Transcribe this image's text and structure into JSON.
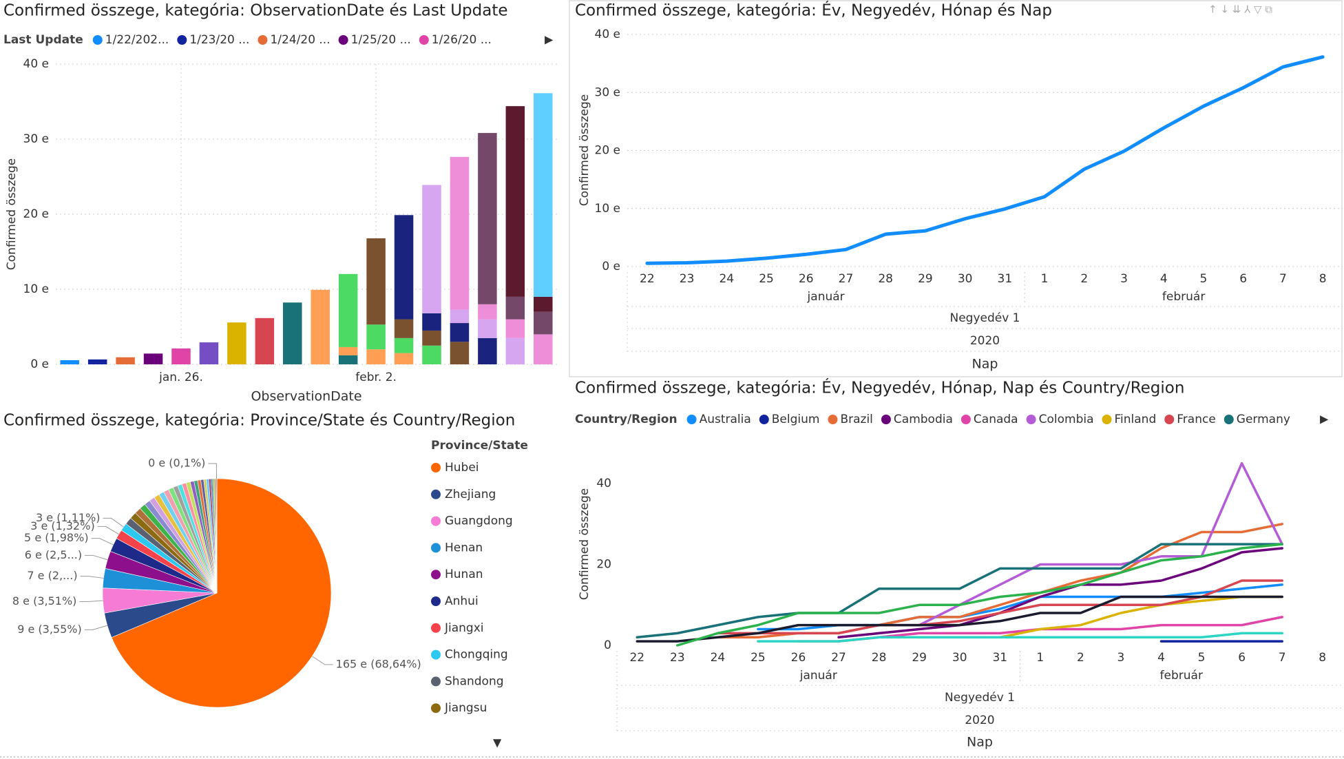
{
  "chart_data": [
    {
      "type": "bar",
      "title": "Confirmed összege, kategória: ObservationDate és Last Update",
      "legend_title": "Last Update",
      "xlabel": "ObservationDate",
      "ylabel": "Confirmed összege",
      "categories": [
        null,
        null,
        null,
        null,
        "jan. 26.",
        null,
        null,
        null,
        null,
        null,
        null,
        "febr. 2.",
        null,
        null,
        null,
        null,
        null,
        null
      ],
      "ylim": [
        0,
        40000
      ],
      "grid": true,
      "yticks": [
        {
          "value": 0,
          "label": "0 e"
        },
        {
          "value": 10000,
          "label": "10 e"
        },
        {
          "value": 20000,
          "label": "20 e"
        },
        {
          "value": 30000,
          "label": "30 e"
        },
        {
          "value": 40000,
          "label": "40 e"
        }
      ],
      "series": [
        {
          "name": "1/22/202...",
          "color": "#118DFF",
          "values": [
            555,
            null,
            null,
            null,
            null,
            null,
            null,
            null,
            null,
            null,
            null,
            null,
            null,
            null,
            null,
            null,
            null,
            null
          ]
        },
        {
          "name": "1/23/20 ...",
          "color": "#12239E",
          "values": [
            null,
            653,
            null,
            null,
            null,
            null,
            null,
            null,
            null,
            null,
            null,
            null,
            null,
            null,
            null,
            null,
            null,
            null
          ]
        },
        {
          "name": "1/24/20 ...",
          "color": "#E66C37",
          "values": [
            null,
            null,
            941,
            null,
            null,
            null,
            null,
            null,
            null,
            null,
            null,
            null,
            null,
            null,
            null,
            null,
            null,
            null
          ]
        },
        {
          "name": "1/25/20 ...",
          "color": "#6B007B",
          "values": [
            null,
            null,
            null,
            1434,
            null,
            null,
            null,
            null,
            null,
            null,
            null,
            null,
            null,
            null,
            null,
            null,
            null,
            null
          ]
        },
        {
          "name": "1/26/20 ...",
          "color": "#E044A7",
          "values": [
            null,
            null,
            null,
            null,
            2118,
            null,
            null,
            null,
            null,
            null,
            null,
            null,
            null,
            null,
            null,
            null,
            null,
            null
          ]
        },
        {
          "color": "#744EC2",
          "values": [
            null,
            null,
            null,
            null,
            null,
            2927,
            null,
            null,
            null,
            null,
            null,
            null,
            null,
            null,
            null,
            null,
            null,
            null
          ]
        },
        {
          "color": "#D9B300",
          "values": [
            null,
            null,
            null,
            null,
            null,
            null,
            5578,
            null,
            null,
            null,
            null,
            null,
            null,
            null,
            null,
            null,
            null,
            null
          ]
        },
        {
          "color": "#D64550",
          "values": [
            null,
            null,
            null,
            null,
            null,
            null,
            null,
            6166,
            null,
            null,
            null,
            null,
            null,
            null,
            null,
            null,
            null,
            null
          ]
        },
        {
          "color": "#197278",
          "values": [
            null,
            null,
            null,
            null,
            null,
            null,
            null,
            null,
            8234,
            null,
            1200,
            null,
            null,
            null,
            null,
            null,
            null,
            null
          ]
        },
        {
          "color": "#FF9F55",
          "values": [
            null,
            null,
            null,
            null,
            null,
            null,
            null,
            null,
            null,
            9927,
            1100,
            2000,
            1500,
            null,
            null,
            null,
            null,
            null
          ]
        },
        {
          "color": "#4CD964",
          "values": [
            null,
            null,
            null,
            null,
            null,
            null,
            null,
            null,
            null,
            null,
            9738,
            3300,
            2000,
            2500,
            null,
            null,
            null,
            null
          ]
        },
        {
          "color": "#7B5230",
          "values": [
            null,
            null,
            null,
            null,
            null,
            null,
            null,
            null,
            null,
            null,
            null,
            11487,
            2500,
            2000,
            3000,
            null,
            null,
            null
          ]
        },
        {
          "color": "#1A237E",
          "values": [
            null,
            null,
            null,
            null,
            null,
            null,
            null,
            null,
            null,
            null,
            null,
            null,
            13881,
            2300,
            2500,
            3500,
            null,
            null
          ]
        },
        {
          "color": "#D7A6F0",
          "values": [
            null,
            null,
            null,
            null,
            null,
            null,
            null,
            null,
            null,
            null,
            null,
            null,
            null,
            17092,
            1800,
            2500,
            3500,
            null
          ]
        },
        {
          "color": "#EE8DD8",
          "values": [
            null,
            null,
            null,
            null,
            null,
            null,
            null,
            null,
            null,
            null,
            null,
            null,
            null,
            null,
            20336,
            2000,
            2500,
            4000
          ]
        },
        {
          "color": "#744868",
          "values": [
            null,
            null,
            null,
            null,
            null,
            null,
            null,
            null,
            null,
            null,
            null,
            null,
            null,
            null,
            null,
            22818,
            3000,
            3000
          ]
        },
        {
          "color": "#5C1A2E",
          "values": [
            null,
            null,
            null,
            null,
            null,
            null,
            null,
            null,
            null,
            null,
            null,
            null,
            null,
            null,
            null,
            null,
            25392,
            2000
          ]
        },
        {
          "color": "#5FCFFF",
          "values": [
            null,
            null,
            null,
            null,
            null,
            null,
            null,
            null,
            null,
            null,
            null,
            null,
            null,
            null,
            null,
            null,
            null,
            27120
          ]
        }
      ]
    },
    {
      "type": "line",
      "title": "Confirmed összege, kategória: Év, Negyedév, Hónap és Nap",
      "ylabel": "Confirmed összege",
      "xlabel": "Nap",
      "months": [
        "január",
        "február"
      ],
      "quarter": "Negyedév 1",
      "year": "2020",
      "categories": [
        "22",
        "23",
        "24",
        "25",
        "26",
        "27",
        "28",
        "29",
        "30",
        "31",
        "1",
        "2",
        "3",
        "4",
        "5",
        "6",
        "7",
        "8"
      ],
      "ylim": [
        0,
        40000
      ],
      "grid": true,
      "yticks": [
        {
          "value": 0,
          "label": "0 e"
        },
        {
          "value": 10000,
          "label": "10 e"
        },
        {
          "value": 20000,
          "label": "20 e"
        },
        {
          "value": 30000,
          "label": "30 e"
        },
        {
          "value": 40000,
          "label": "40 e"
        }
      ],
      "series": [
        {
          "color": "#118DFF",
          "values": [
            555,
            653,
            941,
            1434,
            2118,
            2927,
            5578,
            6166,
            8234,
            9927,
            12038,
            16787,
            19881,
            23892,
            27636,
            30818,
            34392,
            36120
          ]
        }
      ]
    },
    {
      "type": "pie",
      "title": "Confirmed összege, kategória: Province/State és Country/Region",
      "legend_title": "Province/State",
      "categories": [
        "Hubei",
        "Zhejiang",
        "Guangdong",
        "Henan",
        "Hunan",
        "Anhui",
        "Jiangxi",
        "Chongqing",
        "Shandong",
        "Jiangsu",
        null,
        null,
        null,
        null,
        null,
        null,
        null,
        null,
        null,
        null,
        null,
        null,
        null,
        null,
        null,
        null,
        null,
        null,
        null,
        null,
        null,
        null,
        null,
        null
      ],
      "values": [
        165000,
        8534,
        8438,
        6600,
        6010,
        4760,
        3173,
        2668,
        2450,
        2350,
        2200,
        2100,
        2000,
        1900,
        1900,
        1800,
        1800,
        1700,
        1600,
        1500,
        1462,
        1400,
        1300,
        1200,
        1100,
        1000,
        900,
        800,
        700,
        600,
        500,
        400,
        300,
        240
      ],
      "value_labels": [
        "165 e (68,64%)",
        "9 e (3,55%)",
        "8 e (3,51%)",
        "7 e (2,...)",
        "6 e (2,5...)",
        "5 e (1,98%)",
        "3 e (1,32%)",
        "3 e (1,11%)",
        null,
        null,
        null,
        null,
        null,
        null,
        null,
        null,
        null,
        null,
        null,
        null,
        null,
        null,
        null,
        null,
        null,
        null,
        null,
        null,
        null,
        null,
        null,
        null,
        null,
        "0 e (0,1%)"
      ],
      "colors": [
        "#FF6600",
        "#2B4A8C",
        "#F57BD4",
        "#1E90D8",
        "#8E0F8C",
        "#1E2A8A",
        "#F5424B",
        "#2DC8F0",
        "#5A6170",
        "#8B6A10",
        "#B0703A",
        "#3DB34A",
        "#8A8AD0",
        "#D0A0E0",
        "#E8C040",
        "#6FD0F0",
        "#F0A0B0",
        "#7FE07F",
        "#A0A0A0",
        "#50E0E0",
        "#FF8FA0",
        "#C0E060",
        "#9060C0",
        "#40A080",
        "#E07040",
        "#6060A0",
        "#D0D060",
        "#60C0FF",
        "#A04060",
        "#4080C0",
        "#80C040",
        "#C08040",
        "#404040",
        "#707070"
      ]
    },
    {
      "type": "line",
      "title": "Confirmed összege, kategória: Év, Negyedév, Hónap, Nap és Country/Region",
      "legend_title": "Country/Region",
      "ylabel": "Confirmed összege",
      "xlabel": "Nap",
      "months": [
        "január",
        "február"
      ],
      "quarter": "Negyedév 1",
      "year": "2020",
      "categories": [
        "22",
        "23",
        "24",
        "25",
        "26",
        "27",
        "28",
        "29",
        "30",
        "31",
        "1",
        "2",
        "3",
        "4",
        "5",
        "6",
        "7",
        "8"
      ],
      "ylim": [
        0,
        48
      ],
      "yticks": [
        0,
        20,
        40
      ],
      "grid": false,
      "series": [
        {
          "name": "Australia",
          "color": "#118DFF",
          "values": [
            null,
            null,
            null,
            4,
            4,
            5,
            5,
            7,
            7,
            9,
            12,
            12,
            12,
            12,
            13,
            14,
            15,
            null
          ]
        },
        {
          "name": "Belgium",
          "color": "#12239E",
          "values": [
            null,
            null,
            null,
            null,
            null,
            null,
            null,
            null,
            null,
            null,
            null,
            null,
            null,
            1,
            1,
            1,
            1,
            null
          ]
        },
        {
          "name": "Brazil",
          "color": "#E66C37",
          "values": [
            null,
            null,
            2,
            2,
            3,
            3,
            5,
            7,
            7,
            10,
            13,
            16,
            18,
            24,
            28,
            28,
            30,
            null
          ]
        },
        {
          "name": "Cambodia",
          "color": "#6B007B",
          "values": [
            null,
            null,
            null,
            null,
            null,
            2,
            3,
            4,
            5,
            8,
            12,
            15,
            15,
            16,
            19,
            23,
            24,
            null
          ]
        },
        {
          "name": "Canada",
          "color": "#E044A7",
          "values": [
            null,
            null,
            null,
            null,
            1,
            1,
            2,
            3,
            3,
            3,
            4,
            4,
            4,
            5,
            5,
            5,
            7,
            null
          ]
        },
        {
          "name": "Colombia",
          "color": "#B45CD6",
          "values": [
            null,
            null,
            null,
            null,
            null,
            null,
            null,
            5,
            10,
            15,
            20,
            20,
            20,
            22,
            22,
            45,
            25,
            null
          ]
        },
        {
          "name": "Finland",
          "color": "#D9B300",
          "values": [
            null,
            null,
            null,
            null,
            null,
            null,
            null,
            null,
            null,
            2,
            4,
            5,
            8,
            10,
            11,
            12,
            12,
            null
          ]
        },
        {
          "name": "France",
          "color": "#D64550",
          "values": [
            null,
            null,
            3,
            3,
            3,
            3,
            5,
            5,
            6,
            8,
            10,
            10,
            10,
            10,
            12,
            16,
            16,
            null
          ]
        },
        {
          "name": "Germany",
          "color": "#197278",
          "values": [
            2,
            3,
            5,
            7,
            8,
            8,
            14,
            14,
            14,
            19,
            19,
            19,
            19,
            25,
            25,
            25,
            25,
            null
          ]
        },
        {
          "color": "#1B1B2F",
          "values": [
            1,
            1,
            2,
            3,
            5,
            5,
            5,
            5,
            5,
            6,
            8,
            8,
            12,
            12,
            12,
            12,
            12,
            null
          ]
        },
        {
          "color": "#2BB24C",
          "values": [
            null,
            0,
            3,
            5,
            8,
            8,
            8,
            10,
            10,
            12,
            13,
            15,
            18,
            21,
            22,
            24,
            25,
            null
          ]
        },
        {
          "color": "#2CD5C4",
          "values": [
            null,
            null,
            null,
            1,
            1,
            1,
            2,
            2,
            2,
            2,
            2,
            2,
            2,
            2,
            2,
            3,
            3,
            null
          ]
        }
      ]
    }
  ]
}
